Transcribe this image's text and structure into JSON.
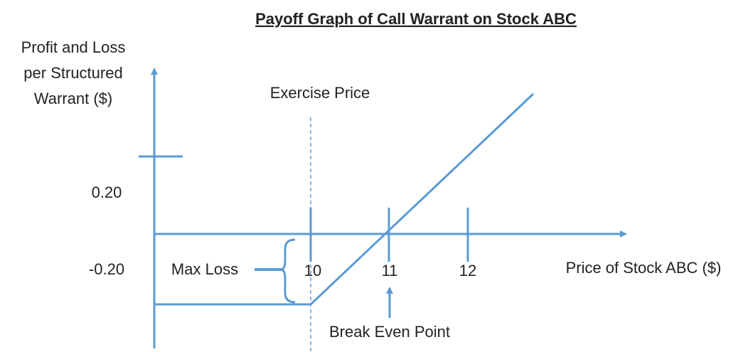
{
  "title": "Payoff Graph of Call Warrant on Stock ABC",
  "y_axis_label": [
    "Profit and Loss",
    "per Structured",
    "Warrant ($)"
  ],
  "x_axis_label": "Price of Stock ABC ($)",
  "y_tick_labels": [
    "0.20",
    "-0.20"
  ],
  "x_tick_labels": [
    "10",
    "11",
    "12"
  ],
  "annotations": {
    "exercise_price": "Exercise Price",
    "max_loss": "Max Loss",
    "break_even": "Break Even Point"
  }
}
